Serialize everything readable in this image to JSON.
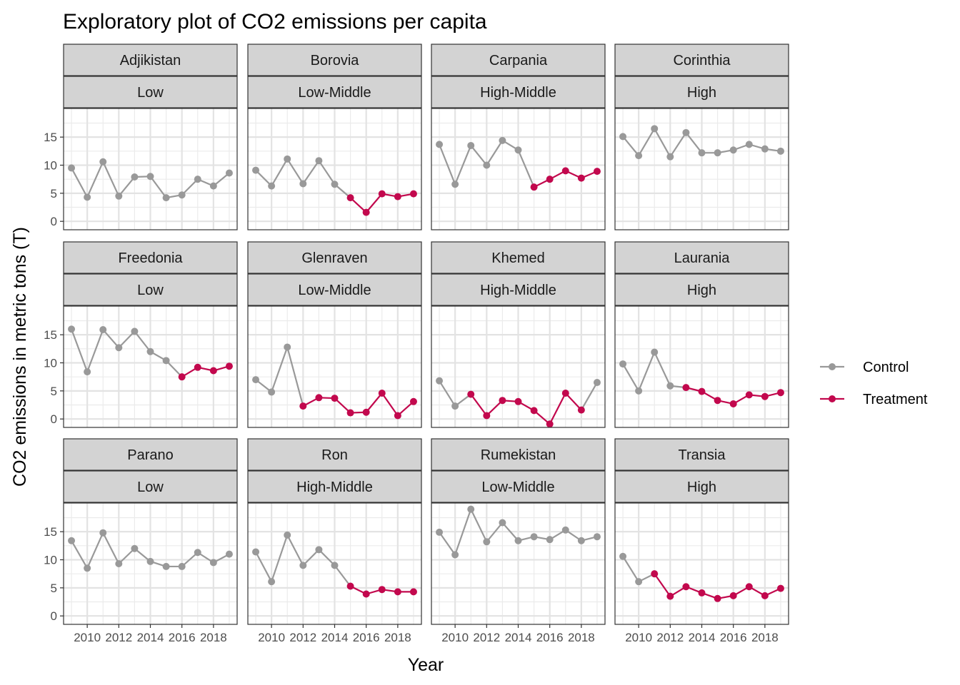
{
  "chart_data": {
    "type": "line",
    "title": "Exploratory plot of CO2 emissions per capita",
    "xlabel": "Year",
    "ylabel": "CO2 emissions in metric tons (T)",
    "x": [
      2009,
      2010,
      2011,
      2012,
      2013,
      2014,
      2015,
      2016,
      2017,
      2018,
      2019
    ],
    "x_ticks": [
      2010,
      2012,
      2014,
      2016,
      2018
    ],
    "x_tick_labels": [
      "2010",
      "2012",
      "2014",
      "2016",
      "2018"
    ],
    "xlim": [
      2008.5,
      2019.5
    ],
    "y_ticks": [
      0,
      5,
      10,
      15
    ],
    "y_tick_labels": [
      "0",
      "5",
      "10",
      "15"
    ],
    "ylim": [
      -1.5,
      20.1
    ],
    "grid": true,
    "legend_position": "right",
    "legend": [
      {
        "name": "Control",
        "color": "#999999"
      },
      {
        "name": "Treatment",
        "color": "#c2084d"
      }
    ],
    "panels": [
      {
        "country": "Adjikistan",
        "income": "Low",
        "values": [
          9.5,
          4.3,
          10.6,
          4.5,
          7.9,
          8.0,
          4.2,
          4.7,
          7.5,
          6.3,
          8.6
        ],
        "treatment_start": null
      },
      {
        "country": "Borovia",
        "income": "Low-Middle",
        "values": [
          9.1,
          6.3,
          11.1,
          6.7,
          10.8,
          6.6,
          4.2,
          1.6,
          4.9,
          4.4,
          4.9
        ],
        "treatment_start": 2015
      },
      {
        "country": "Carpania",
        "income": "High-Middle",
        "values": [
          13.7,
          6.6,
          13.5,
          10.0,
          14.4,
          12.7,
          6.1,
          7.5,
          9.0,
          7.7,
          8.9
        ],
        "treatment_start": 2015
      },
      {
        "country": "Corinthia",
        "income": "High",
        "values": [
          15.1,
          11.7,
          16.5,
          11.5,
          15.8,
          12.2,
          12.2,
          12.7,
          13.7,
          12.9,
          12.5
        ],
        "treatment_start": null
      },
      {
        "country": "Freedonia",
        "income": "Low",
        "values": [
          16.0,
          8.4,
          15.9,
          12.7,
          15.6,
          12.0,
          10.4,
          7.5,
          9.2,
          8.6,
          9.4
        ],
        "treatment_start": 2016
      },
      {
        "country": "Glenraven",
        "income": "Low-Middle",
        "values": [
          7.0,
          4.8,
          12.8,
          2.3,
          3.8,
          3.7,
          1.1,
          1.2,
          4.6,
          0.6,
          3.1
        ],
        "treatment_start": 2012
      },
      {
        "country": "Khemed",
        "income": "High-Middle",
        "values": [
          6.8,
          2.3,
          4.4,
          0.6,
          3.3,
          3.1,
          1.5,
          -0.9,
          4.6,
          1.6,
          6.5
        ],
        "treatment_start": 2011,
        "treatment_end": 2018
      },
      {
        "country": "Laurania",
        "income": "High",
        "values": [
          9.8,
          5.0,
          11.9,
          5.9,
          5.6,
          4.9,
          3.3,
          2.7,
          4.3,
          4.0,
          4.7
        ],
        "treatment_start": 2013
      },
      {
        "country": "Parano",
        "income": "Low",
        "values": [
          13.4,
          8.5,
          14.8,
          9.3,
          12.0,
          9.7,
          8.8,
          8.8,
          11.3,
          9.5,
          11.0
        ],
        "treatment_start": null
      },
      {
        "country": "Ron",
        "income": "High-Middle",
        "values": [
          11.4,
          6.1,
          14.4,
          9.0,
          11.8,
          9.0,
          5.3,
          3.9,
          4.7,
          4.3,
          4.3
        ],
        "treatment_start": 2015
      },
      {
        "country": "Rumekistan",
        "income": "Low-Middle",
        "values": [
          14.9,
          10.9,
          19.0,
          13.2,
          16.6,
          13.4,
          14.1,
          13.6,
          15.3,
          13.4,
          14.1
        ],
        "treatment_start": null
      },
      {
        "country": "Transia",
        "income": "High",
        "values": [
          10.6,
          6.1,
          7.5,
          3.5,
          5.2,
          4.1,
          3.1,
          3.6,
          5.2,
          3.6,
          4.9
        ],
        "treatment_start": 2011
      }
    ]
  }
}
